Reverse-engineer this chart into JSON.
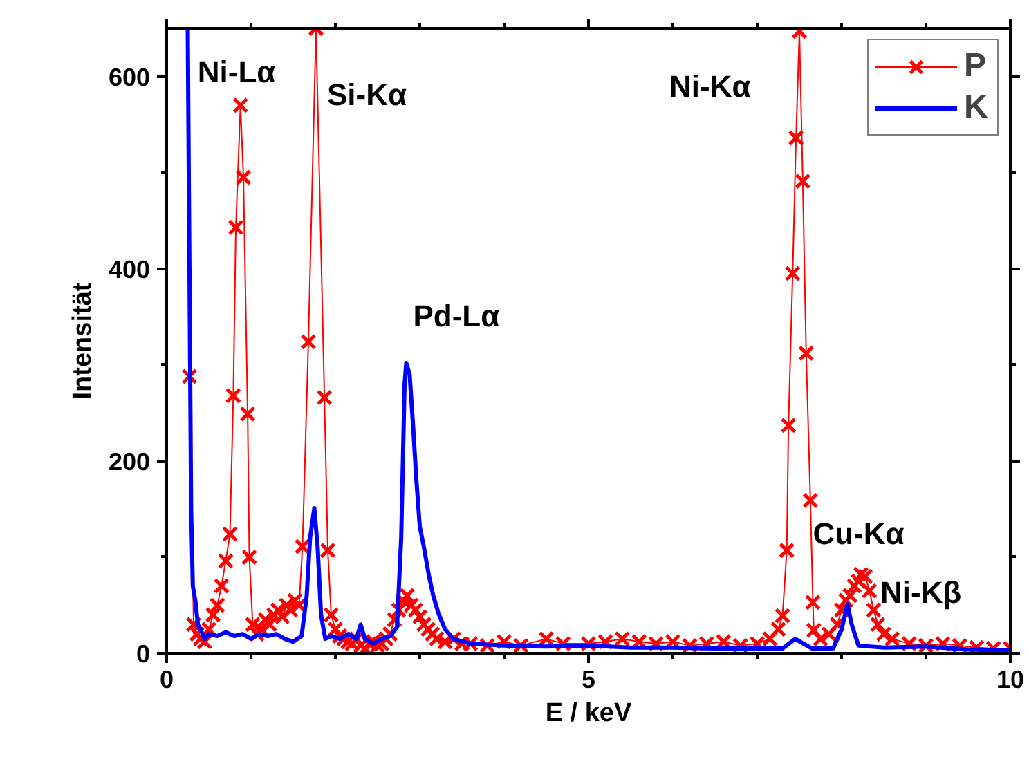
{
  "chart_data": {
    "type": "line",
    "xlabel": "E / keV",
    "ylabel": "Intensität",
    "xlim": [
      0,
      10
    ],
    "ylim": [
      0,
      650
    ],
    "xticks": [
      0,
      5,
      10
    ],
    "yticks": [
      0,
      200,
      400,
      600
    ],
    "grid": false,
    "legend": "top right",
    "series": [
      {
        "name": "P",
        "color": "#ff0000",
        "marker": "cross",
        "x": [
          0.27,
          0.32,
          0.36,
          0.4,
          0.45,
          0.5,
          0.55,
          0.6,
          0.65,
          0.7,
          0.75,
          0.79,
          0.82,
          0.875,
          0.91,
          0.96,
          0.98,
          1.02,
          1.07,
          1.12,
          1.17,
          1.22,
          1.27,
          1.32,
          1.37,
          1.42,
          1.47,
          1.52,
          1.57,
          1.61,
          1.68,
          1.77,
          1.87,
          1.91,
          1.95,
          2.0,
          2.05,
          2.1,
          2.15,
          2.2,
          2.25,
          2.3,
          2.35,
          2.4,
          2.45,
          2.5,
          2.55,
          2.6,
          2.65,
          2.7,
          2.75,
          2.8,
          2.85,
          2.9,
          2.95,
          3.0,
          3.05,
          3.1,
          3.15,
          3.2,
          3.3,
          3.4,
          3.5,
          3.6,
          3.8,
          4.0,
          4.2,
          4.5,
          4.7,
          5.0,
          5.2,
          5.4,
          5.6,
          5.8,
          6.0,
          6.2,
          6.4,
          6.6,
          6.8,
          7.0,
          7.15,
          7.25,
          7.3,
          7.35,
          7.37,
          7.42,
          7.46,
          7.5,
          7.54,
          7.58,
          7.63,
          7.66,
          7.67,
          7.75,
          7.85,
          7.95,
          8.0,
          8.05,
          8.1,
          8.15,
          8.2,
          8.23,
          8.28,
          8.33,
          8.38,
          8.43,
          8.5,
          8.6,
          8.8,
          9.0,
          9.2,
          9.4,
          9.6,
          9.8,
          10.0
        ],
        "values": [
          288,
          30,
          20,
          15,
          12,
          25,
          40,
          50,
          70,
          96,
          124,
          268,
          443,
          570,
          495,
          249,
          100,
          30,
          20,
          25,
          35,
          30,
          40,
          45,
          38,
          50,
          45,
          55,
          50,
          111,
          324,
          650,
          266,
          107,
          40,
          25,
          18,
          15,
          12,
          10,
          15,
          8,
          5,
          10,
          12,
          8,
          10,
          15,
          20,
          35,
          45,
          55,
          60,
          50,
          45,
          38,
          30,
          25,
          20,
          15,
          12,
          15,
          10,
          10,
          8,
          12,
          8,
          15,
          10,
          10,
          12,
          15,
          12,
          10,
          12,
          8,
          10,
          12,
          8,
          10,
          15,
          25,
          39,
          107,
          237,
          395,
          536,
          647,
          491,
          312,
          159,
          53,
          24,
          15,
          20,
          30,
          45,
          55,
          60,
          70,
          75,
          82,
          80,
          65,
          45,
          30,
          20,
          15,
          10,
          8,
          10,
          8,
          6,
          5,
          5
        ]
      },
      {
        "name": "K",
        "color": "#0000ff",
        "marker": "none",
        "x": [
          0.25,
          0.27,
          0.29,
          0.31,
          0.34,
          0.37,
          0.4,
          0.45,
          0.5,
          0.6,
          0.7,
          0.8,
          0.9,
          1.0,
          1.1,
          1.2,
          1.3,
          1.4,
          1.5,
          1.6,
          1.66,
          1.7,
          1.75,
          1.79,
          1.83,
          1.88,
          1.95,
          2.05,
          2.15,
          2.25,
          2.3,
          2.35,
          2.45,
          2.55,
          2.65,
          2.73,
          2.78,
          2.82,
          2.84,
          2.88,
          2.92,
          2.96,
          3.0,
          3.05,
          3.11,
          3.16,
          3.22,
          3.3,
          3.4,
          3.6,
          4.0,
          4.5,
          5.0,
          5.5,
          6.0,
          6.5,
          7.0,
          7.3,
          7.45,
          7.55,
          7.65,
          7.9,
          8.0,
          8.07,
          8.12,
          8.2,
          8.5,
          9.0,
          9.5,
          10.0
        ],
        "values": [
          650,
          400,
          150,
          70,
          55,
          30,
          25,
          15,
          20,
          18,
          22,
          18,
          20,
          15,
          20,
          18,
          20,
          15,
          12,
          18,
          60,
          120,
          151,
          110,
          40,
          15,
          18,
          15,
          20,
          15,
          30,
          15,
          10,
          15,
          18,
          27,
          120,
          280,
          302,
          290,
          238,
          180,
          132,
          110,
          80,
          60,
          42,
          25,
          15,
          10,
          8,
          7,
          8,
          6,
          6,
          5,
          5,
          5,
          15,
          10,
          5,
          5,
          25,
          51,
          30,
          8,
          6,
          7,
          4,
          3
        ]
      }
    ],
    "annotations": [
      {
        "text": "Ni-Lα",
        "x": 0.875,
        "y": 570
      },
      {
        "text": "Si-Kα",
        "x": 1.77,
        "y": 650
      },
      {
        "text": "Pd-Lα",
        "x": 2.84,
        "y": 302
      },
      {
        "text": "Ni-Kα",
        "x": 7.5,
        "y": 647
      },
      {
        "text": "Cu-Kα",
        "x": 8.07,
        "y": 51
      },
      {
        "text": "Ni-Kβ",
        "x": 8.23,
        "y": 82
      }
    ]
  }
}
